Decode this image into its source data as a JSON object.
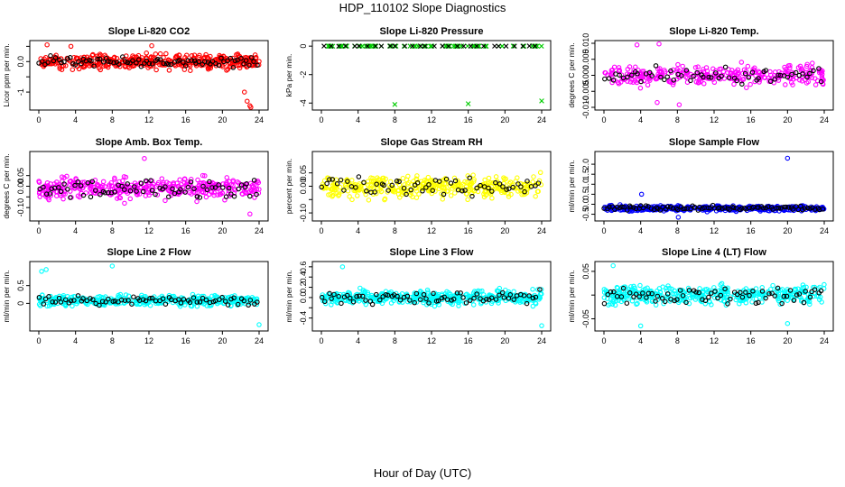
{
  "page": {
    "title": "HDP_110102  Slope Diagnostics",
    "xlabel": "Hour of Day (UTC)"
  },
  "colors": {
    "red": "#ff0000",
    "green": "#00cc00",
    "magenta": "#ff00ff",
    "yellow": "#ffff00",
    "blue": "#0000ff",
    "cyan": "#00ffff",
    "black": "#000000"
  },
  "chart_data": [
    {
      "type": "scatter",
      "title": "Slope Li-820 CO2",
      "ylabel": "Licor ppm per min.",
      "color": "#ff0000",
      "xlim": [
        0,
        24
      ],
      "xticks": [
        0,
        4,
        8,
        12,
        16,
        20,
        24
      ],
      "ylim": [
        -1.5,
        0.6
      ],
      "yticks": [
        -1.0,
        -0.5,
        0.0,
        0.5
      ],
      "ytick_labels": [
        "-1",
        "",
        "0.0",
        ""
      ],
      "spread": 0.22,
      "center": 0.0,
      "n_colored": 420,
      "n_black": 80,
      "outliers": [
        [
          22.4,
          -1.0
        ],
        [
          22.7,
          -1.3
        ],
        [
          23.0,
          -1.45
        ],
        [
          23.1,
          -1.5
        ],
        [
          0.9,
          0.55
        ],
        [
          3.5,
          0.5
        ],
        [
          12.3,
          0.52
        ]
      ]
    },
    {
      "type": "scatter",
      "title": "Slope Li-820 Pressure",
      "ylabel": "kPa per min.",
      "color": "#00cc00",
      "xlim": [
        0,
        24
      ],
      "xticks": [
        0,
        4,
        8,
        12,
        16,
        20,
        24
      ],
      "ylim": [
        -4.3,
        0.2
      ],
      "yticks": [
        0,
        -2,
        -4
      ],
      "ytick_labels": [
        "0",
        "-2",
        "-4"
      ],
      "spread": 0.01,
      "center": 0.0,
      "n_colored": 70,
      "n_black": 30,
      "marker": "x",
      "outliers": [
        [
          8.0,
          -4.1
        ],
        [
          16.0,
          -4.05
        ],
        [
          24.0,
          -3.85
        ]
      ]
    },
    {
      "type": "scatter",
      "title": "Slope Li-820 Temp.",
      "ylabel": "degrees C per min.",
      "color": "#ff00ff",
      "xlim": [
        0,
        24
      ],
      "xticks": [
        0,
        4,
        8,
        12,
        16,
        20,
        24
      ],
      "ylim": [
        -0.01,
        0.01
      ],
      "yticks": [
        -0.01,
        -0.005,
        0.0,
        0.005,
        0.01
      ],
      "ytick_labels": [
        "-0.010",
        "-0.005",
        "0.000",
        "0.005",
        "0.010"
      ],
      "spread": 0.0028,
      "center": 0.0,
      "n_colored": 300,
      "n_black": 60,
      "outliers": [
        [
          5.8,
          -0.0085
        ],
        [
          8.2,
          -0.0092
        ],
        [
          3.6,
          0.0095
        ],
        [
          6.0,
          0.0098
        ]
      ]
    },
    {
      "type": "scatter",
      "title": "Slope Amb. Box Temp.",
      "ylabel": "degrees C per min.",
      "color": "#ff00ff",
      "xlim": [
        0,
        24
      ],
      "xticks": [
        0,
        4,
        8,
        12,
        16,
        20,
        24
      ],
      "ylim": [
        -0.15,
        0.15
      ],
      "yticks": [
        -0.1,
        -0.05,
        0.0,
        0.05
      ],
      "ytick_labels": [
        "-0.10",
        "",
        "0.00",
        "0.05"
      ],
      "spread": 0.045,
      "center": -0.01,
      "n_colored": 380,
      "n_black": 70,
      "outliers": [
        [
          11.5,
          0.13
        ],
        [
          23.0,
          -0.13
        ]
      ]
    },
    {
      "type": "scatter",
      "title": "Slope Gas Stream RH",
      "ylabel": "percent per min.",
      "color": "#ffff00",
      "xlim": [
        0,
        24
      ],
      "xticks": [
        0,
        4,
        8,
        12,
        16,
        20,
        24
      ],
      "ylim": [
        -0.12,
        0.12
      ],
      "yticks": [
        -0.1,
        -0.05,
        0.0,
        0.05
      ],
      "ytick_labels": [
        "-0.10",
        "",
        "0.00",
        "0.05"
      ],
      "spread": 0.04,
      "center": 0.0,
      "n_colored": 380,
      "n_black": 60,
      "outliers": []
    },
    {
      "type": "scatter",
      "title": "Slope Sample Flow",
      "ylabel": "ml/min per min.",
      "color": "#0000ff",
      "xlim": [
        0,
        24
      ],
      "xticks": [
        0,
        4,
        8,
        12,
        16,
        20,
        24
      ],
      "ylim": [
        -0.7,
        2.5
      ],
      "yticks": [
        -0.5,
        0.0,
        0.5,
        1.0,
        1.5,
        2.0
      ],
      "ytick_labels": [
        "-0.5",
        "0.0",
        "0.5",
        "1.0",
        "1.5",
        "2.0"
      ],
      "spread": 0.12,
      "center": -0.2,
      "n_colored": 420,
      "n_black": 90,
      "outliers": [
        [
          20.0,
          2.3
        ],
        [
          4.1,
          0.5
        ],
        [
          8.1,
          -0.65
        ]
      ]
    },
    {
      "type": "scatter",
      "title": "Slope Line 2 Flow",
      "ylabel": "ml/min per min.",
      "color": "#00ffff",
      "xlim": [
        0,
        24
      ],
      "xticks": [
        0,
        4,
        8,
        12,
        16,
        20,
        24
      ],
      "ylim": [
        -0.7,
        1.1
      ],
      "yticks": [
        0.0,
        0.5
      ],
      "ytick_labels": [
        "0",
        "0.5"
      ],
      "spread": 0.13,
      "center": 0.08,
      "n_colored": 400,
      "n_black": 70,
      "outliers": [
        [
          0.3,
          0.9
        ],
        [
          0.8,
          0.95
        ],
        [
          8.0,
          1.05
        ],
        [
          24.0,
          -0.6
        ]
      ]
    },
    {
      "type": "scatter",
      "title": "Slope Line 3 Flow",
      "ylabel": "ml/min per min.",
      "color": "#00ffff",
      "xlim": [
        0,
        24
      ],
      "xticks": [
        0,
        4,
        8,
        12,
        16,
        20,
        24
      ],
      "ylim": [
        -0.6,
        0.65
      ],
      "yticks": [
        -0.4,
        -0.2,
        0.0,
        0.2,
        0.4,
        0.6
      ],
      "ytick_labels": [
        "-0.4",
        "",
        "0.0",
        "0.2",
        "0.4",
        "0.6"
      ],
      "spread": 0.13,
      "center": 0.0,
      "n_colored": 400,
      "n_black": 70,
      "outliers": [
        [
          2.3,
          0.6
        ],
        [
          24.0,
          -0.55
        ]
      ]
    },
    {
      "type": "scatter",
      "title": "Slope Line 4 (LT) Flow",
      "ylabel": "ml/min per min.",
      "color": "#00ffff",
      "xlim": [
        0,
        24
      ],
      "xticks": [
        0,
        4,
        8,
        12,
        16,
        20,
        24
      ],
      "ylim": [
        -0.07,
        0.065
      ],
      "yticks": [
        -0.05,
        0.0,
        0.05
      ],
      "ytick_labels": [
        "-0.05",
        "",
        "0.05"
      ],
      "spread": 0.02,
      "center": 0.0,
      "n_colored": 380,
      "n_black": 70,
      "outliers": [
        [
          4.0,
          -0.065
        ],
        [
          20.0,
          -0.06
        ],
        [
          1.0,
          0.062
        ]
      ]
    }
  ]
}
